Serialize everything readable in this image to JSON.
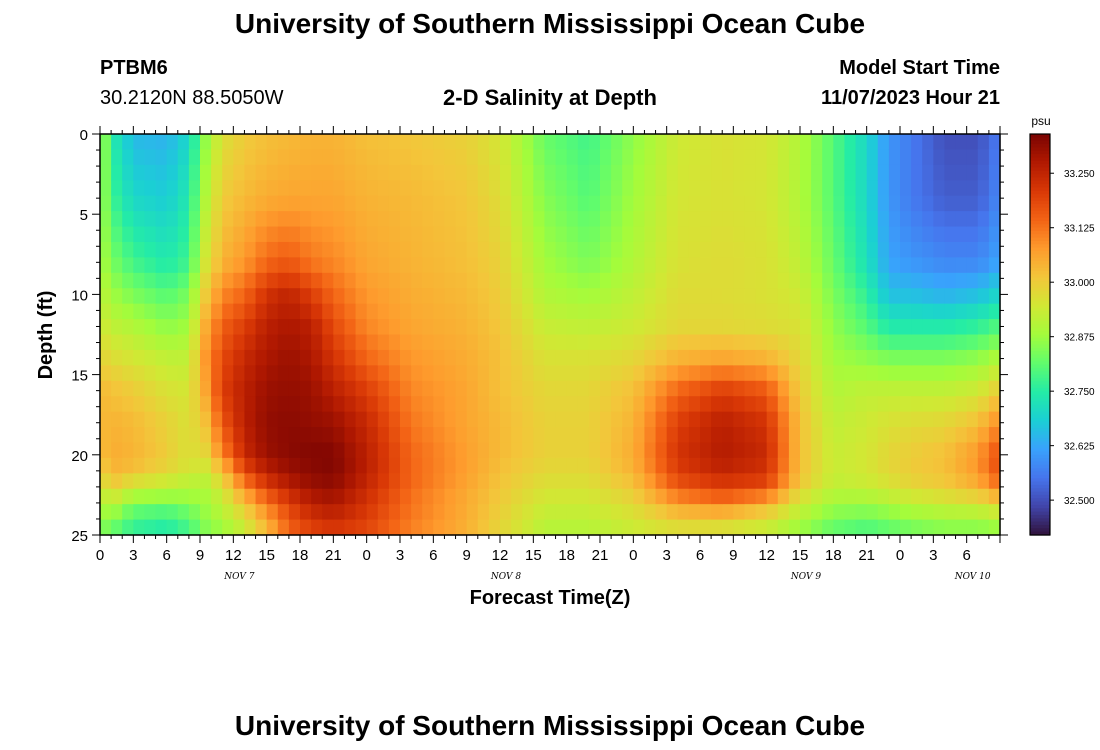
{
  "header": {
    "title": "University of Southern Mississippi Ocean Cube",
    "station_id": "PTBM6",
    "station_coords": "30.2120N  88.5050W",
    "model_start_label": "Model Start Time",
    "model_start_value": "11/07/2023 Hour 21"
  },
  "footer": {
    "title": "University of Southern Mississippi Ocean Cube"
  },
  "chart_data": {
    "type": "heatmap",
    "title": "2-D Salinity at Depth",
    "xlabel": "Forecast Time(Z)",
    "ylabel": "Depth (ft)",
    "ylim": [
      0,
      25
    ],
    "y_inverted": true,
    "y_ticks": [
      0,
      5,
      10,
      15,
      20,
      25
    ],
    "x_hours_total": 81,
    "x_tick_step_hours": 3,
    "x_tick_labels": [
      "0",
      "3",
      "6",
      "9",
      "12",
      "15",
      "18",
      "21",
      "0",
      "3",
      "6",
      "9",
      "12",
      "15",
      "18",
      "21",
      "0",
      "3",
      "6",
      "9",
      "12",
      "15",
      "18",
      "21",
      "0",
      "3",
      "6"
    ],
    "day_labels": [
      {
        "label": "NOV 7",
        "hour": 12
      },
      {
        "label": "NOV 8",
        "hour": 36
      },
      {
        "label": "NOV 9",
        "hour": 63
      },
      {
        "label": "NOV 10",
        "hour": 78
      }
    ],
    "colorbar": {
      "unit": "psu",
      "min": 32.42,
      "max": 33.34,
      "ticks": [
        "33.250",
        "33.125",
        "33.000",
        "32.875",
        "32.750",
        "32.625",
        "32.500"
      ],
      "colors": [
        "#30123b",
        "#4145ab",
        "#4675ed",
        "#39a2fc",
        "#1bcfd4",
        "#24eca6",
        "#61fc6c",
        "#a4fc3b",
        "#d1e834",
        "#f3c63a",
        "#fe9b2d",
        "#f36315",
        "#d93806",
        "#b11901",
        "#7a0402"
      ]
    },
    "columns_per_hour": 1,
    "rows": 26,
    "field_model": {
      "description_of_samples": "salinity (psu) at hour h (0-81) and depth d (0-25 ft)",
      "hours": [
        0,
        1,
        3,
        6,
        8,
        9.5,
        11,
        13,
        15,
        17,
        19,
        21,
        24,
        28,
        33,
        36,
        40,
        44,
        48,
        52,
        56,
        60,
        63,
        66,
        69,
        71,
        73,
        76,
        79,
        81
      ],
      "depths": [
        0,
        4,
        8,
        10,
        12,
        14,
        16,
        18,
        20,
        21,
        22,
        23,
        24,
        25
      ],
      "values": [
        [
          32.92,
          32.9,
          32.9,
          32.92,
          32.95,
          32.99,
          33.03,
          33.03,
          33.02,
          32.98,
          32.93,
          32.88,
          32.86,
          32.85
        ],
        [
          32.75,
          32.78,
          32.84,
          32.88,
          32.92,
          32.97,
          33.02,
          33.04,
          33.05,
          33.04,
          33.0,
          32.92,
          32.86,
          32.8
        ],
        [
          32.65,
          32.7,
          32.78,
          32.84,
          32.9,
          32.95,
          33.0,
          33.03,
          33.04,
          33.02,
          32.94,
          32.85,
          32.78,
          32.76
        ],
        [
          32.64,
          32.68,
          32.74,
          32.8,
          32.86,
          32.92,
          32.96,
          32.99,
          33.0,
          32.98,
          32.92,
          32.84,
          32.76,
          32.74
        ],
        [
          32.7,
          32.74,
          32.78,
          32.84,
          32.88,
          32.92,
          32.95,
          32.96,
          32.96,
          32.95,
          32.9,
          32.86,
          32.8,
          32.78
        ],
        [
          32.86,
          32.9,
          32.95,
          33.0,
          33.05,
          33.08,
          33.06,
          33.02,
          32.98,
          32.94,
          32.9,
          32.88,
          32.86,
          32.84
        ],
        [
          32.96,
          33.0,
          33.04,
          33.1,
          33.15,
          33.18,
          33.2,
          33.16,
          33.1,
          33.02,
          32.96,
          32.92,
          32.9,
          32.86
        ],
        [
          33.0,
          33.03,
          33.08,
          33.14,
          33.2,
          33.24,
          33.26,
          33.26,
          33.24,
          33.18,
          33.1,
          33.02,
          32.96,
          32.92
        ],
        [
          33.02,
          33.05,
          33.14,
          33.22,
          33.26,
          33.28,
          33.3,
          33.31,
          33.3,
          33.26,
          33.2,
          33.12,
          33.06,
          33.02
        ],
        [
          33.03,
          33.06,
          33.16,
          33.25,
          33.28,
          33.3,
          33.31,
          33.32,
          33.32,
          33.3,
          33.26,
          33.2,
          33.16,
          33.14
        ],
        [
          33.04,
          33.06,
          33.12,
          33.2,
          33.26,
          33.28,
          33.3,
          33.31,
          33.33,
          33.32,
          33.3,
          33.26,
          33.22,
          33.18
        ],
        [
          33.04,
          33.06,
          33.1,
          33.14,
          33.18,
          33.22,
          33.26,
          33.3,
          33.33,
          33.33,
          33.31,
          33.28,
          33.24,
          33.2
        ],
        [
          33.02,
          33.04,
          33.06,
          33.08,
          33.1,
          33.14,
          33.2,
          33.24,
          33.26,
          33.26,
          33.24,
          33.22,
          33.2,
          33.18
        ],
        [
          33.01,
          33.03,
          33.04,
          33.05,
          33.06,
          33.08,
          33.1,
          33.12,
          33.14,
          33.14,
          33.14,
          33.12,
          33.12,
          33.1
        ],
        [
          32.99,
          33.01,
          33.02,
          33.03,
          33.04,
          33.05,
          33.06,
          33.06,
          33.07,
          33.07,
          33.06,
          33.05,
          33.05,
          33.04
        ],
        [
          32.95,
          32.97,
          32.99,
          33.0,
          33.01,
          33.02,
          33.02,
          33.03,
          33.03,
          33.02,
          33.01,
          33.0,
          32.99,
          32.98
        ],
        [
          32.82,
          32.85,
          32.88,
          32.9,
          32.93,
          32.96,
          32.98,
          32.99,
          32.99,
          32.98,
          32.96,
          32.94,
          32.92,
          32.9
        ],
        [
          32.78,
          32.8,
          32.84,
          32.88,
          32.92,
          32.96,
          32.98,
          32.99,
          32.99,
          32.98,
          32.96,
          32.94,
          32.92,
          32.9
        ],
        [
          32.86,
          32.88,
          32.9,
          32.92,
          32.94,
          32.98,
          33.02,
          33.04,
          33.05,
          33.04,
          33.01,
          32.98,
          32.95,
          32.93
        ],
        [
          32.94,
          32.95,
          32.96,
          32.97,
          32.98,
          33.04,
          33.14,
          33.2,
          33.22,
          33.2,
          33.16,
          33.08,
          33.0,
          32.95
        ],
        [
          32.96,
          32.96,
          32.97,
          32.97,
          32.98,
          33.06,
          33.2,
          33.26,
          33.27,
          33.25,
          33.2,
          33.12,
          33.0,
          32.94
        ],
        [
          32.95,
          32.95,
          32.96,
          32.96,
          32.97,
          33.04,
          33.16,
          33.22,
          33.24,
          33.22,
          33.18,
          33.06,
          32.96,
          32.92
        ],
        [
          32.9,
          32.9,
          32.92,
          32.94,
          32.96,
          32.98,
          33.0,
          33.02,
          33.02,
          33.02,
          33.0,
          32.94,
          32.9,
          32.86
        ],
        [
          32.8,
          32.8,
          32.82,
          32.84,
          32.86,
          32.88,
          32.9,
          32.92,
          32.93,
          32.93,
          32.92,
          32.88,
          32.84,
          32.8
        ],
        [
          32.7,
          32.7,
          32.72,
          32.76,
          32.8,
          32.86,
          32.92,
          32.94,
          32.95,
          32.95,
          32.93,
          32.88,
          32.82,
          32.78
        ],
        [
          32.6,
          32.6,
          32.62,
          32.66,
          32.74,
          32.84,
          32.92,
          32.96,
          32.98,
          32.98,
          32.95,
          32.9,
          32.84,
          32.8
        ],
        [
          32.56,
          32.56,
          32.6,
          32.66,
          32.74,
          32.84,
          32.92,
          32.97,
          33.0,
          33.0,
          32.98,
          32.92,
          32.86,
          32.82
        ],
        [
          32.5,
          32.52,
          32.58,
          32.64,
          32.74,
          32.84,
          32.92,
          32.98,
          33.02,
          33.02,
          33.0,
          32.94,
          32.88,
          32.84
        ],
        [
          32.5,
          32.52,
          32.58,
          32.66,
          32.76,
          32.86,
          32.94,
          33.02,
          33.08,
          33.08,
          33.04,
          32.96,
          32.88,
          32.84
        ],
        [
          32.56,
          32.58,
          32.62,
          32.7,
          32.8,
          32.9,
          33.0,
          33.1,
          33.18,
          33.18,
          33.12,
          33.0,
          32.9,
          32.86
        ]
      ]
    }
  }
}
